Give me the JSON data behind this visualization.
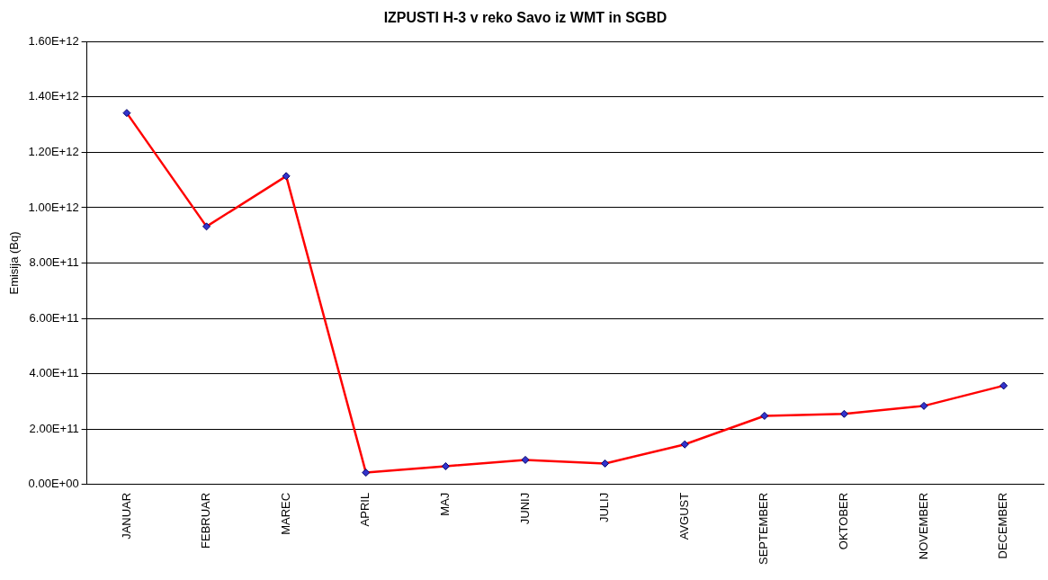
{
  "chart_data": {
    "type": "line",
    "title": "IZPUSTI H-3 v reko Savo iz WMT in SGBD",
    "ylabel": "Emisija (Bq)",
    "categories": [
      "JANUAR",
      "FEBRUAR",
      "MAREC",
      "APRIL",
      "MAJ",
      "JUNIJ",
      "JULIJ",
      "AVGUST",
      "SEPTEMBER",
      "OKTOBER",
      "NOVEMBER",
      "DECEMBER"
    ],
    "series": [
      {
        "color": "#ff0000",
        "values": [
          1342000000000.0,
          932000000000.0,
          1114000000000.0,
          43000000000.0,
          66000000000.0,
          89000000000.0,
          76000000000.0,
          145000000000.0,
          248000000000.0,
          255000000000.0,
          284000000000.0,
          357000000000.0
        ]
      }
    ],
    "ylim": [
      0,
      1600000000000.0
    ],
    "yticks": [
      {
        "value": 0,
        "label": "0.00E+00"
      },
      {
        "value": 200000000000.0,
        "label": "2.00E+11"
      },
      {
        "value": 400000000000.0,
        "label": "4.00E+11"
      },
      {
        "value": 600000000000.0,
        "label": "6.00E+11"
      },
      {
        "value": 800000000000.0,
        "label": "8.00E+11"
      },
      {
        "value": 1000000000000.0,
        "label": "1.00E+12"
      },
      {
        "value": 1200000000000.0,
        "label": "1.20E+12"
      },
      {
        "value": 1400000000000.0,
        "label": "1.40E+12"
      },
      {
        "value": 1600000000000.0,
        "label": "1.60E+12"
      }
    ],
    "grid": "y",
    "legend": false,
    "marker": "diamond",
    "line_style": "solid"
  }
}
